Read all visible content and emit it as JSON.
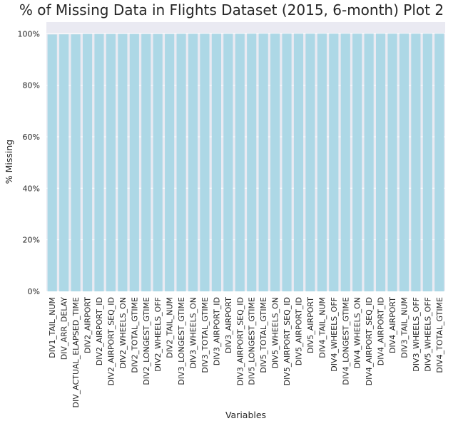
{
  "chart_data": {
    "type": "bar",
    "title": "% of Missing Data in Flights Dataset (2015, 6-month) Plot 2",
    "xlabel": "Variables",
    "ylabel": "% Missing",
    "ylim": [
      0,
      1.045
    ],
    "yticks": [
      0,
      0.2,
      0.4,
      0.6,
      0.8,
      1.0
    ],
    "ytick_labels": [
      "0%",
      "20%",
      "40%",
      "60%",
      "80%",
      "100%"
    ],
    "grid": true,
    "categories": [
      "DIV1_TAIL_NUM",
      "DIV_ARR_DELAY",
      "DIV_ACTUAL_ELAPSED_TIME",
      "DIV2_AIRPORT",
      "DIV2_AIRPORT_ID",
      "DIV2_AIRPORT_SEQ_ID",
      "DIV2_WHEELS_ON",
      "DIV2_TOTAL_GTIME",
      "DIV2_LONGEST_GTIME",
      "DIV2_WHEELS_OFF",
      "DIV2_TAIL_NUM",
      "DIV3_LONGEST_GTIME",
      "DIV3_WHEELS_ON",
      "DIV3_TOTAL_GTIME",
      "DIV3_AIRPORT_ID",
      "DIV3_AIRPORT",
      "DIV3_AIRPORT_SEQ_ID",
      "DIV5_LONGEST_GTIME",
      "DIV5_TOTAL_GTIME",
      "DIV5_WHEELS_ON",
      "DIV5_AIRPORT_SEQ_ID",
      "DIV5_AIRPORT_ID",
      "DIV5_AIRPORT",
      "DIV4_TAIL_NUM",
      "DIV4_WHEELS_OFF",
      "DIV4_LONGEST_GTIME",
      "DIV4_WHEELS_ON",
      "DIV4_AIRPORT_SEQ_ID",
      "DIV4_AIRPORT_ID",
      "DIV4_AIRPORT",
      "DIV3_TAIL_NUM",
      "DIV3_WHEELS_OFF",
      "DIV5_WHEELS_OFF",
      "DIV4_TOTAL_GTIME"
    ],
    "values": [
      0.997,
      0.9975,
      0.9975,
      0.999,
      0.999,
      0.999,
      0.999,
      0.999,
      0.999,
      0.999,
      0.999,
      0.9995,
      0.9995,
      0.9995,
      0.9995,
      0.9995,
      0.9995,
      0.9999,
      0.9999,
      0.9999,
      0.9999,
      0.9999,
      0.9999,
      0.9999,
      0.9999,
      0.9999,
      0.9999,
      0.9999,
      0.9999,
      0.9999,
      0.9999,
      0.9999,
      0.9999,
      0.9999
    ],
    "bar_color": "#add8e6",
    "plot_background": "#eaeaf2",
    "grid_color": "#ffffff"
  }
}
